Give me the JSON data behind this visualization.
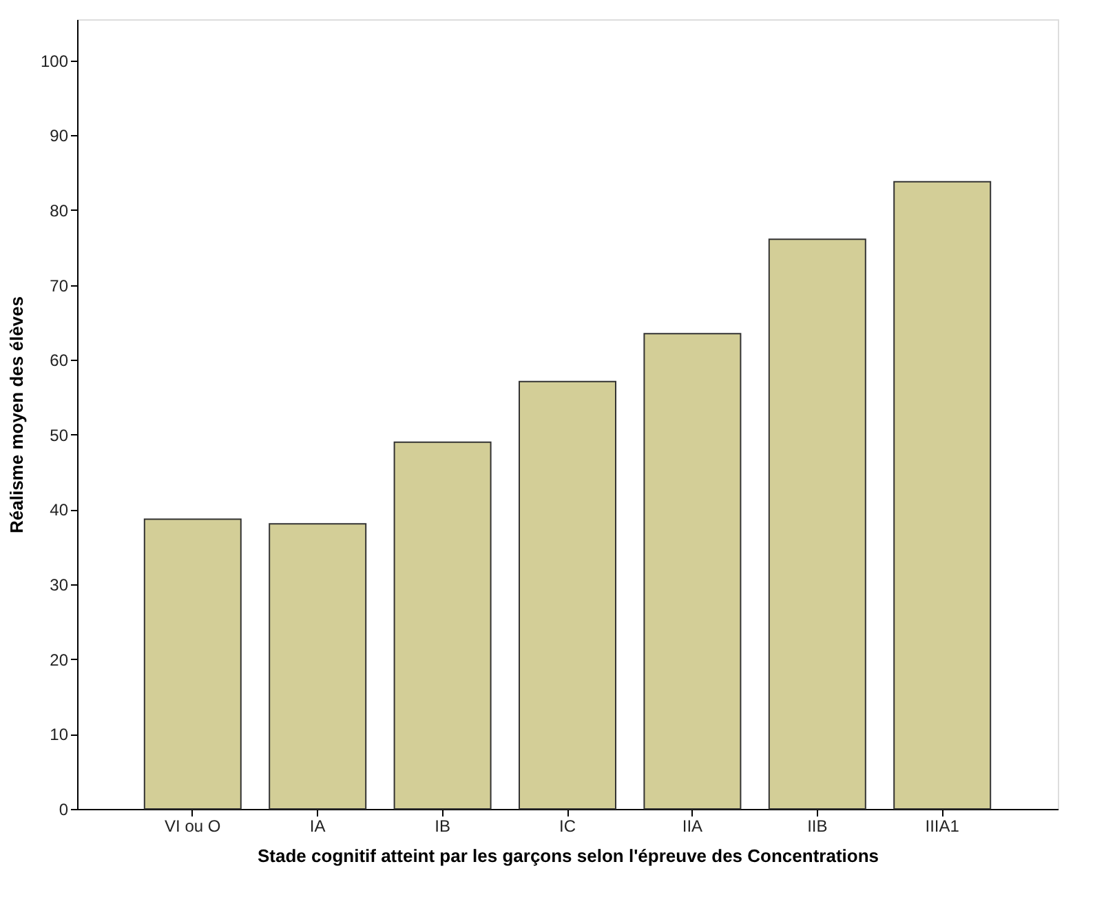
{
  "chart_data": {
    "type": "bar",
    "xlabel": "Stade cognitif atteint par les garçons selon l'épreuve des Concentrations",
    "ylabel": "Réalisme moyen des élèves",
    "categories": [
      "VI ou O",
      "IA",
      "IB",
      "IC",
      "IIA",
      "IIB",
      "IIIA1"
    ],
    "values": [
      38.7,
      38.1,
      49.0,
      57.1,
      63.5,
      76.1,
      83.8
    ],
    "color": "#d3ce97",
    "ylim": [
      0,
      105.5
    ],
    "yticks": [
      0,
      10,
      20,
      30,
      40,
      50,
      60,
      70,
      80,
      90,
      100
    ],
    "grid": false
  }
}
